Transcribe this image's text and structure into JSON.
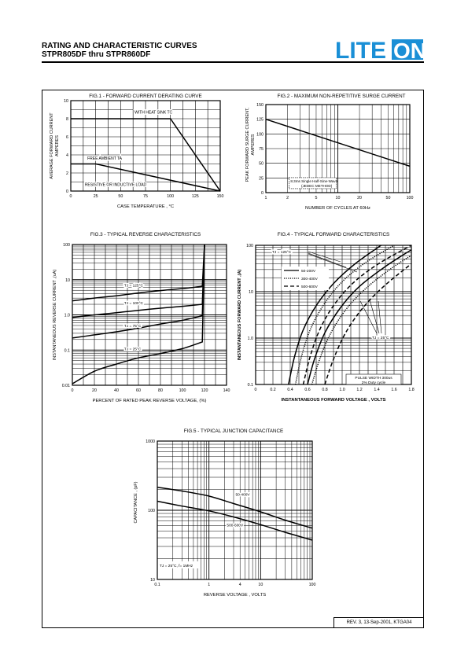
{
  "header": {
    "title_line1": "RATING AND CHARACTERISTIC CURVES",
    "title_line2": "STPR805DF thru STPR860DF",
    "logo_text_left": "LITE",
    "logo_text_right": "ON",
    "brand_color": "#1a8fd6"
  },
  "footer": {
    "revision": "REV. 3, 13-Sep-2001, KTGA04"
  },
  "chart_data": [
    {
      "id": "fig1",
      "type": "line",
      "title": "FIG.1 - FORWARD CURRENT DERATING CURVE",
      "xlabel": "CASE TEMPERATURE , °C",
      "ylabel": "AVERAGE FORWARD CURRENT AMPERES",
      "xlim": [
        0,
        150
      ],
      "ylim": [
        0,
        10
      ],
      "xticks": [
        0,
        25,
        50,
        75,
        100,
        125,
        150
      ],
      "yticks": [
        0,
        2,
        4,
        6,
        8,
        10
      ],
      "series": [
        {
          "name": "WITH HEAT SINK TC",
          "x": [
            0,
            100,
            150
          ],
          "y": [
            8,
            8,
            0
          ]
        },
        {
          "name": "FREE AMBIENT TA",
          "x": [
            0,
            25,
            150
          ],
          "y": [
            3,
            3,
            0
          ]
        }
      ],
      "annotations": [
        "RESISTIVE OR INDUCTIVE LOAD"
      ]
    },
    {
      "id": "fig2",
      "type": "line",
      "title": "FIG.2 - MAXIMUM NON-REPETITIVE SURGE CURRENT",
      "xlabel": "NUMBER OF CYCLES AT 60Hz",
      "ylabel": "PEAK FORWARD SURGE CURRENT, AMPERES",
      "xscale": "log",
      "xlim": [
        1,
        100
      ],
      "ylim": [
        0,
        150
      ],
      "xticks": [
        1,
        2,
        5,
        10,
        20,
        50,
        100
      ],
      "yticks": [
        0,
        25,
        50,
        75,
        100,
        125,
        150
      ],
      "series": [
        {
          "x": [
            1,
            100
          ],
          "y": [
            125,
            45
          ]
        }
      ],
      "annotations": [
        "8.3ms Single Half-Sine-Wave",
        "(JEDEC METHOD)"
      ]
    },
    {
      "id": "fig3",
      "type": "line",
      "title": "FIG.3 - TYPICAL REVERSE CHARACTERISTICS",
      "xlabel": "PERCENT OF RATED PEAK REVERSE VOLTAGE, (%)",
      "ylabel": "INSTANTANEOUS REVERSE CURRENT ,(uA)",
      "yscale": "log",
      "xlim": [
        0,
        140
      ],
      "ylim": [
        0.01,
        100
      ],
      "xticks": [
        0,
        20,
        40,
        60,
        80,
        100,
        120,
        140
      ],
      "yticks": [
        "0.01",
        "0.1",
        "1.0",
        "10",
        "100"
      ],
      "series": [
        {
          "name": "TJ = 125°C",
          "x": [
            0,
            20,
            40,
            60,
            80,
            100,
            118,
            120
          ],
          "y": [
            2.5,
            3.0,
            3.5,
            4.2,
            4.9,
            5.6,
            6.5,
            100
          ]
        },
        {
          "name": "TJ = 100°C",
          "x": [
            0,
            20,
            40,
            60,
            80,
            100,
            118,
            120
          ],
          "y": [
            0.85,
            1.0,
            1.15,
            1.35,
            1.55,
            1.75,
            2.0,
            100
          ]
        },
        {
          "name": "TJ = 75°C",
          "x": [
            0,
            20,
            40,
            60,
            80,
            100,
            118,
            120
          ],
          "y": [
            0.22,
            0.27,
            0.33,
            0.42,
            0.55,
            0.7,
            0.95,
            100
          ]
        },
        {
          "name": "TJ = 25°C",
          "x": [
            0,
            20,
            40,
            60,
            80,
            100,
            118,
            120
          ],
          "y": [
            0.011,
            0.025,
            0.04,
            0.06,
            0.08,
            0.11,
            0.17,
            100
          ]
        }
      ]
    },
    {
      "id": "fig4",
      "type": "line",
      "title": "FIG.4 - TYPICAL FORWARD CHARACTERISTICS",
      "xlabel": "INSTANTANEOUS FORWARD VOLTAGE , VOLTS",
      "ylabel": "INSTANTANEOUS FORWARD CURRENT ,(A)",
      "yscale": "log",
      "xlim": [
        0,
        1.8
      ],
      "ylim": [
        0.1,
        100
      ],
      "xticks": [
        "0",
        "0.2",
        "0.4",
        "0.6",
        "0.8",
        "1.0",
        "1.2",
        "1.4",
        "1.6",
        "1.8"
      ],
      "yticks": [
        "0.1",
        "1.0",
        "10",
        "100"
      ],
      "legend": [
        "50-200V",
        "300-400V",
        "500-600V"
      ],
      "series": [
        {
          "name": "50-200V",
          "style": "solid",
          "x": [
            0.38,
            0.45,
            0.55,
            0.7,
            0.9,
            1.15,
            1.45
          ],
          "y": [
            0.1,
            0.4,
            1.5,
            5,
            15,
            40,
            100
          ]
        },
        {
          "name": "300-400V",
          "style": "dotted",
          "x": [
            0.46,
            0.53,
            0.63,
            0.78,
            0.98,
            1.25,
            1.6
          ],
          "y": [
            0.1,
            0.4,
            1.5,
            5,
            15,
            40,
            100
          ]
        },
        {
          "name": "500-600V",
          "style": "dashed",
          "x": [
            0.55,
            0.63,
            0.74,
            0.9,
            1.12,
            1.42,
            1.8
          ],
          "y": [
            0.1,
            0.4,
            1.5,
            5,
            15,
            40,
            100
          ]
        },
        {
          "name": "50-200V",
          "style": "solid",
          "x": [
            0.6,
            0.68,
            0.8,
            0.98,
            1.2,
            1.5,
            1.8
          ],
          "y": [
            0.1,
            0.35,
            1.3,
            4.5,
            13,
            35,
            80
          ]
        },
        {
          "name": "300-400V",
          "style": "dotted",
          "x": [
            0.65,
            0.74,
            0.87,
            1.06,
            1.3,
            1.6,
            1.8
          ],
          "y": [
            0.1,
            0.35,
            1.3,
            4.5,
            13,
            35,
            60
          ]
        },
        {
          "name": "500-600V",
          "style": "dashed",
          "x": [
            0.8,
            0.9,
            1.04,
            1.24,
            1.48,
            1.8
          ],
          "y": [
            0.1,
            0.35,
            1.3,
            4.5,
            13,
            40
          ]
        }
      ],
      "annotations": [
        "TJ = 125°C",
        "TJ = 25°C",
        "PULSE WIDTH 300us",
        "2% Duty cycle"
      ]
    },
    {
      "id": "fig5",
      "type": "line",
      "title": "FIG.5 - TYPICAL JUNCTION CAPACITANCE",
      "xlabel": "REVERSE VOLTAGE , VOLTS",
      "ylabel": "CAPACITANCE , (pF)",
      "xscale": "log",
      "yscale": "log",
      "xlim": [
        0.1,
        100
      ],
      "ylim": [
        10,
        1000
      ],
      "xticks": [
        "0.1",
        "1",
        "4",
        "10",
        "100"
      ],
      "yticks": [
        "10",
        "100",
        "1000"
      ],
      "series": [
        {
          "name": "50-400V",
          "x": [
            0.1,
            0.3,
            1,
            3,
            10,
            30,
            100
          ],
          "y": [
            215,
            190,
            160,
            125,
            95,
            72,
            55
          ]
        },
        {
          "name": "500-600V",
          "x": [
            0.1,
            0.3,
            1,
            3,
            10,
            30,
            100
          ],
          "y": [
            135,
            115,
            98,
            80,
            62,
            48,
            37
          ]
        }
      ],
      "annotations": [
        "TJ = 25°C, f= 1MHz"
      ]
    }
  ]
}
